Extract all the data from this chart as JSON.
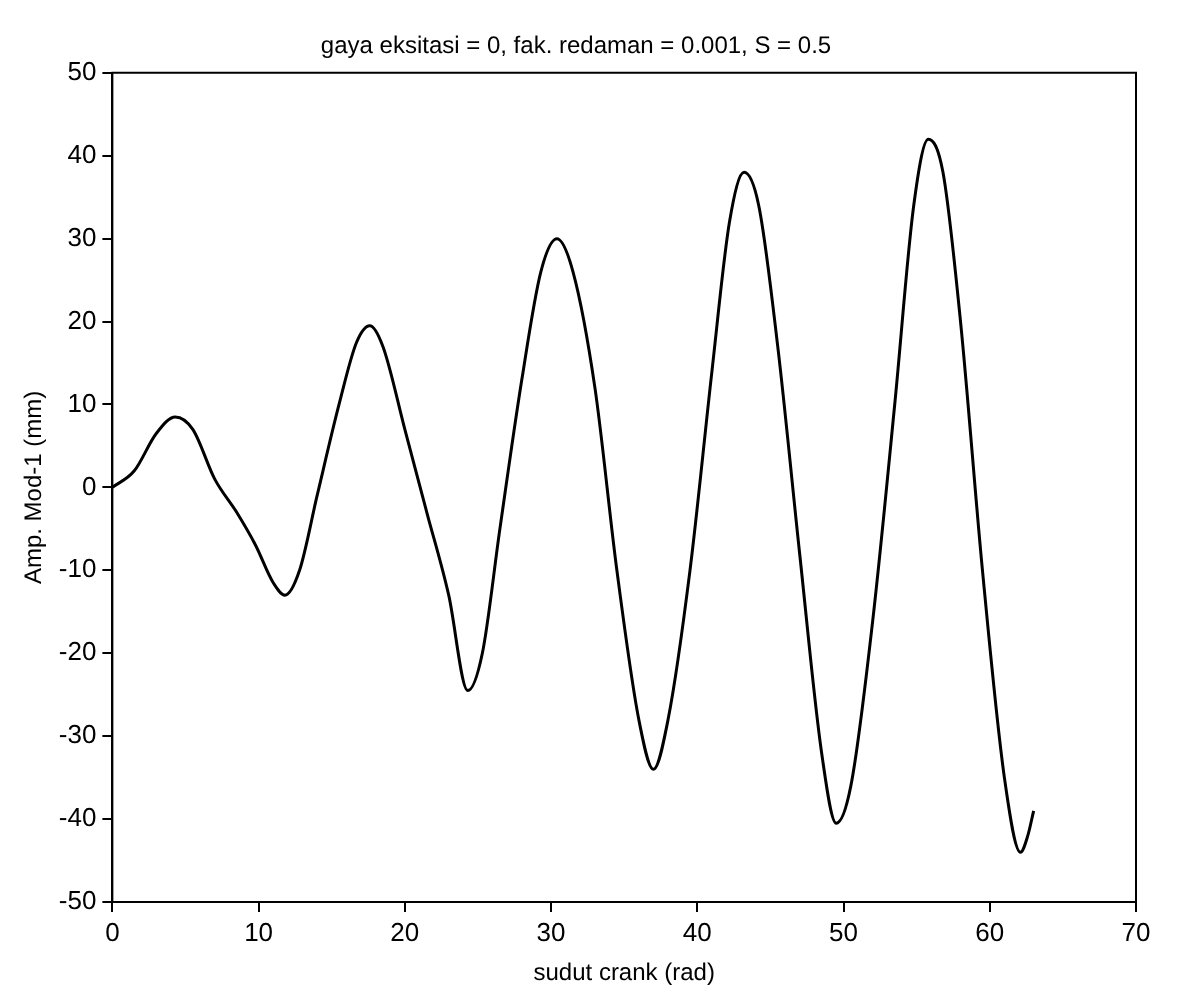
{
  "chart_data": {
    "type": "line",
    "title": "gaya eksitasi = 0, fak. redaman = 0.001, S = 0.5",
    "xlabel": "sudut crank (rad)",
    "ylabel": "Amp. Mod-1 (mm)",
    "xlim": [
      0,
      70
    ],
    "xticks": [
      0,
      10,
      20,
      30,
      40,
      50,
      60,
      70
    ],
    "ylim": [
      -50,
      50
    ],
    "yticks": [
      -50,
      -40,
      -30,
      -20,
      -10,
      0,
      10,
      20,
      30,
      40,
      50
    ],
    "grid": false,
    "legend": false,
    "marker": "none",
    "line_style": "solid",
    "series": [
      {
        "color": "#000000",
        "x": [
          0,
          1.5,
          3,
          4.3,
          5.5,
          7,
          8.5,
          9.8,
          11,
          11.8,
          12.8,
          14,
          15.5,
          16.7,
          17.6,
          18.5,
          20,
          21.5,
          23,
          24.3,
          25.3,
          26.5,
          28,
          29.3,
          30.4,
          31.5,
          33,
          34.5,
          36,
          37,
          38,
          39.5,
          41,
          42.2,
          43.2,
          44.2,
          45.5,
          47,
          48.5,
          49.5,
          50.5,
          52,
          53.5,
          54.8,
          55.8,
          56.8,
          58,
          59.5,
          61,
          62.1,
          62.6,
          63
        ],
        "values": [
          0,
          2,
          6.5,
          8.5,
          7,
          1,
          -3,
          -7,
          -11.5,
          -13,
          -10,
          -1,
          10,
          17.5,
          19.5,
          17,
          7,
          -3,
          -13,
          -24.5,
          -20,
          -5,
          13,
          26,
          30,
          26,
          12,
          -10,
          -28,
          -34,
          -28,
          -10,
          14,
          32,
          38,
          34,
          17,
          -8,
          -32,
          -40.5,
          -36,
          -16,
          10,
          34,
          42,
          38,
          20,
          -10,
          -35,
          -44,
          -42,
          -39
        ]
      }
    ]
  }
}
